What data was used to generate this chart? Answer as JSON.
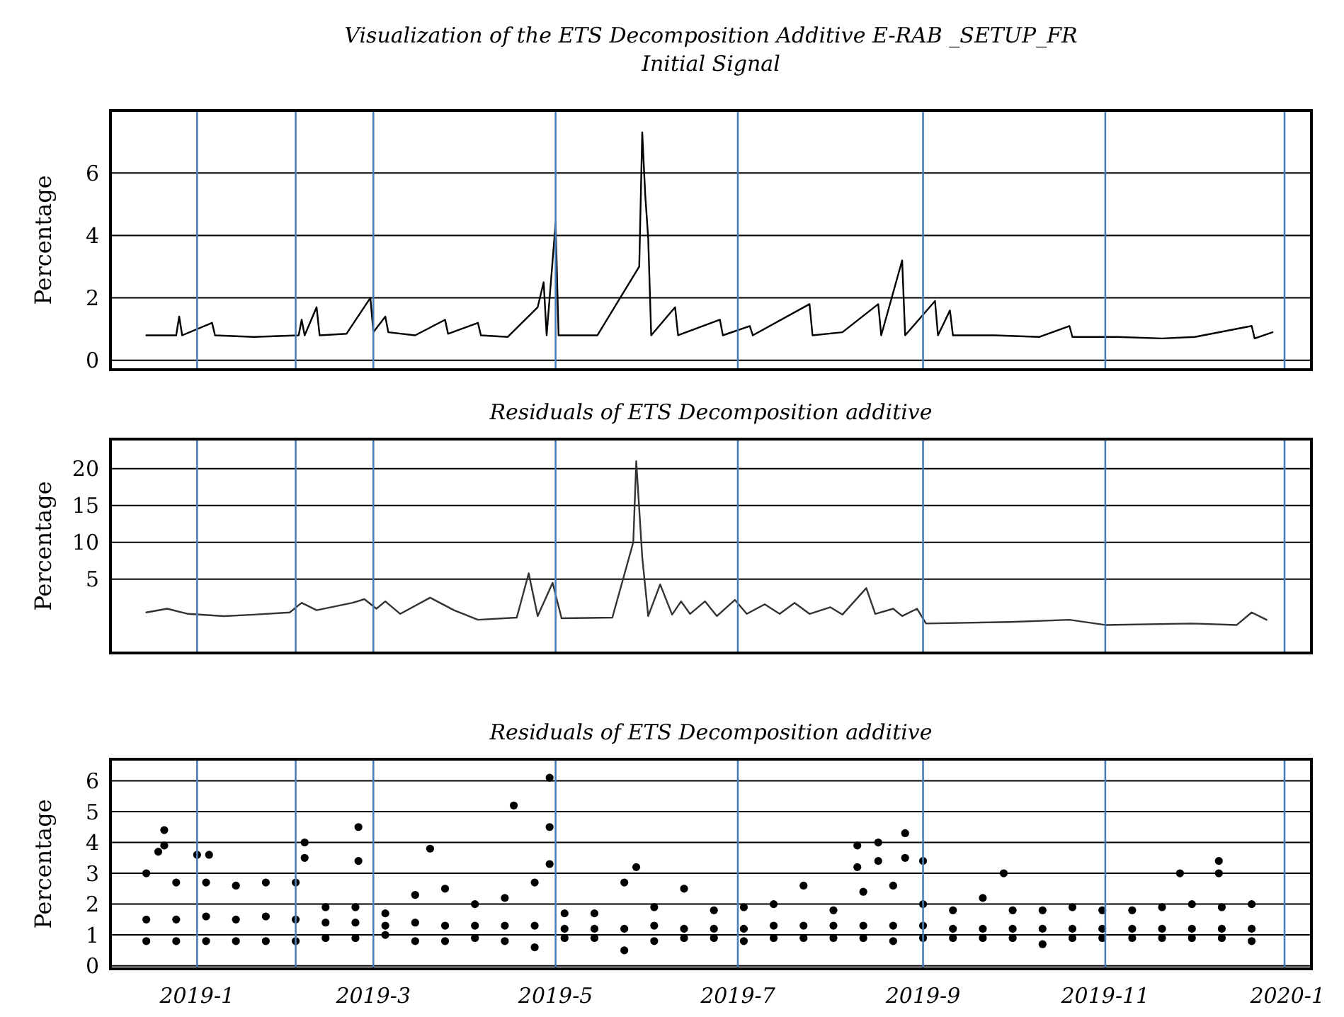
{
  "chart_data": [
    {
      "type": "line",
      "title": "Visualization of the ETS Decomposition Additive E-RAB _SETUP_FR",
      "subtitle": "Initial Signal",
      "ylabel": "Percentage",
      "xlim": [
        "2018-12-03",
        "2020-01-09"
      ],
      "ylim": [
        -0.3,
        8
      ],
      "yticks": [
        0,
        2,
        4,
        6
      ],
      "grid": "y",
      "tick_labels": "y",
      "ref_lines": [
        {
          "axis": "x",
          "value": "2019-01-01",
          "color": "#4a7ebb"
        },
        {
          "axis": "x",
          "value": "2019-02-03",
          "color": "#4a7ebb"
        },
        {
          "axis": "x",
          "value": "2019-03-01",
          "color": "#4a7ebb"
        },
        {
          "axis": "x",
          "value": "2019-05-01",
          "color": "#4a7ebb"
        },
        {
          "axis": "x",
          "value": "2019-07-01",
          "color": "#4a7ebb"
        },
        {
          "axis": "x",
          "value": "2019-09-01",
          "color": "#4a7ebb"
        },
        {
          "axis": "x",
          "value": "2019-11-01",
          "color": "#4a7ebb"
        },
        {
          "axis": "x",
          "value": "2019-12-31",
          "color": "#4a7ebb"
        }
      ],
      "series": [
        {
          "color": "#000000",
          "x": [
            "2018-12-15",
            "2018-12-25",
            "2018-12-26",
            "2018-12-27",
            "2019-01-06",
            "2019-01-07",
            "2019-01-20",
            "2019-02-04",
            "2019-02-05",
            "2019-02-06",
            "2019-02-10",
            "2019-02-11",
            "2019-02-20",
            "2019-02-28",
            "2019-03-01",
            "2019-03-05",
            "2019-03-06",
            "2019-03-15",
            "2019-03-25",
            "2019-03-26",
            "2019-04-05",
            "2019-04-06",
            "2019-04-15",
            "2019-04-25",
            "2019-04-27",
            "2019-04-28",
            "2019-05-01",
            "2019-05-02",
            "2019-05-15",
            "2019-05-29",
            "2019-05-30",
            "2019-05-31",
            "2019-06-01",
            "2019-06-02",
            "2019-06-10",
            "2019-06-11",
            "2019-06-25",
            "2019-06-26",
            "2019-07-05",
            "2019-07-06",
            "2019-07-25",
            "2019-07-26",
            "2019-08-05",
            "2019-08-17",
            "2019-08-18",
            "2019-08-25",
            "2019-08-26",
            "2019-09-05",
            "2019-09-06",
            "2019-09-10",
            "2019-09-11",
            "2019-09-25",
            "2019-10-10",
            "2019-10-20",
            "2019-10-21",
            "2019-11-05",
            "2019-11-20",
            "2019-12-01",
            "2019-12-20",
            "2019-12-21",
            "2019-12-27"
          ],
          "values": [
            0.8,
            0.8,
            1.4,
            0.8,
            1.2,
            0.8,
            0.75,
            0.8,
            1.3,
            0.8,
            1.7,
            0.8,
            0.85,
            2.0,
            0.9,
            1.4,
            0.9,
            0.8,
            1.3,
            0.85,
            1.2,
            0.8,
            0.75,
            1.7,
            2.5,
            0.8,
            4.4,
            0.8,
            0.8,
            3.0,
            7.3,
            5.3,
            3.9,
            0.8,
            1.7,
            0.8,
            1.3,
            0.8,
            1.1,
            0.8,
            1.8,
            0.8,
            0.9,
            1.8,
            0.8,
            3.2,
            0.8,
            1.9,
            0.8,
            1.6,
            0.8,
            0.8,
            0.75,
            1.1,
            0.75,
            0.75,
            0.7,
            0.75,
            1.1,
            0.7,
            0.9
          ]
        }
      ]
    },
    {
      "type": "line",
      "title": "Residuals  of ETS Decomposition additive",
      "ylabel": "Percentage",
      "xlim": [
        "2018-12-03",
        "2020-01-09"
      ],
      "ylim": [
        -5,
        24
      ],
      "yticks": [
        5,
        10,
        15,
        20
      ],
      "grid": "y",
      "tick_labels": "y",
      "ref_lines": [
        {
          "axis": "x",
          "value": "2019-01-01",
          "color": "#4a7ebb"
        },
        {
          "axis": "x",
          "value": "2019-02-03",
          "color": "#4a7ebb"
        },
        {
          "axis": "x",
          "value": "2019-03-01",
          "color": "#4a7ebb"
        },
        {
          "axis": "x",
          "value": "2019-05-01",
          "color": "#4a7ebb"
        },
        {
          "axis": "x",
          "value": "2019-07-01",
          "color": "#4a7ebb"
        },
        {
          "axis": "x",
          "value": "2019-09-01",
          "color": "#4a7ebb"
        },
        {
          "axis": "x",
          "value": "2019-11-01",
          "color": "#4a7ebb"
        },
        {
          "axis": "x",
          "value": "2019-12-31",
          "color": "#4a7ebb"
        }
      ],
      "series": [
        {
          "color": "#333333",
          "x": [
            "2018-12-15",
            "2018-12-22",
            "2018-12-29",
            "2019-01-10",
            "2019-01-20",
            "2019-02-01",
            "2019-02-05",
            "2019-02-10",
            "2019-02-22",
            "2019-02-26",
            "2019-03-02",
            "2019-03-05",
            "2019-03-10",
            "2019-03-20",
            "2019-03-28",
            "2019-04-05",
            "2019-04-18",
            "2019-04-22",
            "2019-04-25",
            "2019-04-30",
            "2019-05-03",
            "2019-05-20",
            "2019-05-27",
            "2019-05-28",
            "2019-05-30",
            "2019-06-01",
            "2019-06-05",
            "2019-06-09",
            "2019-06-12",
            "2019-06-15",
            "2019-06-20",
            "2019-06-24",
            "2019-06-30",
            "2019-07-04",
            "2019-07-10",
            "2019-07-15",
            "2019-07-20",
            "2019-07-25",
            "2019-08-01",
            "2019-08-05",
            "2019-08-13",
            "2019-08-16",
            "2019-08-22",
            "2019-08-25",
            "2019-08-30",
            "2019-09-02",
            "2019-09-30",
            "2019-10-20",
            "2019-11-01",
            "2019-11-30",
            "2019-12-15",
            "2019-12-20",
            "2019-12-25"
          ],
          "values": [
            0.5,
            1.0,
            0.3,
            0,
            0.2,
            0.5,
            1.8,
            0.8,
            1.8,
            2.3,
            1.0,
            2.0,
            0.3,
            2.5,
            0.8,
            -0.5,
            -0.2,
            5.8,
            0,
            4.5,
            -0.3,
            -0.2,
            10,
            21,
            8,
            0,
            4.3,
            0.2,
            2,
            0.3,
            2,
            0,
            2.2,
            0.3,
            1.6,
            0.3,
            1.8,
            0.3,
            1.2,
            0.2,
            3.8,
            0.3,
            1,
            0,
            1,
            -1,
            -0.8,
            -0.5,
            -1.2,
            -1,
            -1.2,
            0.5,
            -0.5
          ]
        }
      ]
    },
    {
      "type": "scatter",
      "title": "Residuals of ETS Decomposition additive",
      "ylabel": "Percentage",
      "marker": "circle",
      "xlim": [
        "2018-12-03",
        "2020-01-09"
      ],
      "xticks": [
        {
          "value": "2019-01-01",
          "label": "2019-1"
        },
        {
          "value": "2019-03-01",
          "label": "2019-3"
        },
        {
          "value": "2019-05-01",
          "label": "2019-5"
        },
        {
          "value": "2019-07-01",
          "label": "2019-7"
        },
        {
          "value": "2019-09-01",
          "label": "2019-9"
        },
        {
          "value": "2019-11-01",
          "label": "2019-11"
        },
        {
          "value": "2020-01-01",
          "label": "2020-1"
        }
      ],
      "ylim": [
        -0.1,
        6.7
      ],
      "yticks": [
        0,
        1,
        2,
        3,
        4,
        5,
        6
      ],
      "grid": "y",
      "ref_lines": [
        {
          "axis": "x",
          "value": "2019-01-01",
          "color": "#4a7ebb"
        },
        {
          "axis": "x",
          "value": "2019-02-03",
          "color": "#4a7ebb"
        },
        {
          "axis": "x",
          "value": "2019-03-01",
          "color": "#4a7ebb"
        },
        {
          "axis": "x",
          "value": "2019-05-01",
          "color": "#4a7ebb"
        },
        {
          "axis": "x",
          "value": "2019-07-01",
          "color": "#4a7ebb"
        },
        {
          "axis": "x",
          "value": "2019-09-01",
          "color": "#4a7ebb"
        },
        {
          "axis": "x",
          "value": "2019-11-01",
          "color": "#4a7ebb"
        },
        {
          "axis": "x",
          "value": "2019-12-31",
          "color": "#4a7ebb"
        }
      ],
      "series": [
        {
          "color": "#000000",
          "x": [
            "2018-12-15",
            "2018-12-15",
            "2018-12-15",
            "2018-12-25",
            "2018-12-25",
            "2018-12-25",
            "2019-01-04",
            "2019-01-04",
            "2019-01-04",
            "2019-01-14",
            "2019-01-14",
            "2019-01-14",
            "2019-01-24",
            "2019-01-24",
            "2019-01-24",
            "2019-02-03",
            "2019-02-03",
            "2019-02-03",
            "2019-02-13",
            "2019-02-13",
            "2019-02-13",
            "2019-02-23",
            "2019-02-23",
            "2019-02-23",
            "2019-03-05",
            "2019-03-05",
            "2019-03-05",
            "2019-03-15",
            "2019-03-15",
            "2019-03-15",
            "2019-03-25",
            "2019-03-25",
            "2019-03-25",
            "2019-04-04",
            "2019-04-04",
            "2019-04-04",
            "2019-04-14",
            "2019-04-14",
            "2019-04-14",
            "2019-04-24",
            "2019-04-24",
            "2019-04-24",
            "2019-05-04",
            "2019-05-04",
            "2019-05-04",
            "2019-05-14",
            "2019-05-14",
            "2019-05-14",
            "2019-05-24",
            "2019-05-24",
            "2019-05-24",
            "2019-06-03",
            "2019-06-03",
            "2019-06-03",
            "2019-06-13",
            "2019-06-13",
            "2019-06-13",
            "2019-06-23",
            "2019-06-23",
            "2019-06-23",
            "2019-07-03",
            "2019-07-03",
            "2019-07-03",
            "2019-07-13",
            "2019-07-13",
            "2019-07-13",
            "2019-07-23",
            "2019-07-23",
            "2019-07-23",
            "2019-08-02",
            "2019-08-02",
            "2019-08-02",
            "2019-08-12",
            "2019-08-12",
            "2019-08-12",
            "2019-08-22",
            "2019-08-22",
            "2019-08-22",
            "2019-09-01",
            "2019-09-01",
            "2019-09-01",
            "2019-09-11",
            "2019-09-11",
            "2019-09-11",
            "2019-09-21",
            "2019-09-21",
            "2019-09-21",
            "2019-10-01",
            "2019-10-01",
            "2019-10-01",
            "2019-10-11",
            "2019-10-11",
            "2019-10-11",
            "2019-10-21",
            "2019-10-21",
            "2019-10-21",
            "2019-10-31",
            "2019-10-31",
            "2019-10-31",
            "2019-11-10",
            "2019-11-10",
            "2019-11-10",
            "2019-11-20",
            "2019-11-20",
            "2019-11-20",
            "2019-11-30",
            "2019-11-30",
            "2019-11-30",
            "2019-12-10",
            "2019-12-10",
            "2019-12-10",
            "2019-12-20",
            "2019-12-20",
            "2019-12-20",
            "2018-12-19",
            "2018-12-21",
            "2018-12-21",
            "2019-01-01",
            "2019-01-05",
            "2019-02-06",
            "2019-02-06",
            "2019-02-24",
            "2019-02-24",
            "2019-03-20",
            "2019-04-17",
            "2019-04-29",
            "2019-04-29",
            "2019-04-29",
            "2019-05-28",
            "2019-08-10",
            "2019-08-10",
            "2019-08-17",
            "2019-08-17",
            "2019-08-26",
            "2019-08-26",
            "2019-09-01",
            "2019-09-28",
            "2019-11-26",
            "2019-12-09",
            "2019-12-09"
          ],
          "values": [
            0.8,
            1.5,
            3.0,
            0.8,
            1.5,
            2.7,
            0.8,
            1.6,
            2.7,
            0.8,
            1.5,
            2.6,
            0.8,
            1.6,
            2.7,
            0.8,
            1.5,
            2.7,
            0.9,
            1.4,
            1.9,
            0.9,
            1.4,
            1.9,
            1.0,
            1.3,
            1.7,
            0.8,
            1.4,
            2.3,
            0.8,
            1.3,
            2.5,
            0.9,
            1.3,
            2.0,
            0.8,
            1.3,
            2.2,
            0.6,
            1.3,
            2.7,
            0.9,
            1.2,
            1.7,
            0.9,
            1.2,
            1.7,
            0.5,
            1.2,
            2.7,
            0.8,
            1.3,
            1.9,
            0.9,
            1.2,
            2.5,
            0.9,
            1.2,
            1.8,
            0.8,
            1.2,
            1.9,
            0.9,
            1.3,
            2.0,
            0.9,
            1.3,
            2.6,
            0.9,
            1.3,
            1.8,
            0.9,
            1.3,
            2.4,
            0.8,
            1.3,
            2.6,
            0.9,
            1.3,
            2.0,
            0.9,
            1.2,
            1.8,
            0.9,
            1.2,
            2.2,
            0.9,
            1.2,
            1.8,
            0.7,
            1.2,
            1.8,
            0.9,
            1.2,
            1.9,
            0.9,
            1.2,
            1.8,
            0.9,
            1.2,
            1.8,
            0.9,
            1.2,
            1.9,
            0.9,
            1.2,
            2.0,
            0.9,
            1.2,
            1.9,
            0.8,
            1.2,
            2.0,
            3.7,
            4.4,
            3.9,
            3.6,
            3.6,
            4.0,
            3.5,
            4.5,
            3.4,
            3.8,
            5.2,
            6.1,
            4.5,
            3.3,
            3.2,
            3.9,
            3.2,
            4.0,
            3.4,
            4.3,
            3.5,
            3.4,
            3.0,
            3.0,
            3.4,
            3.0
          ]
        }
      ]
    }
  ]
}
